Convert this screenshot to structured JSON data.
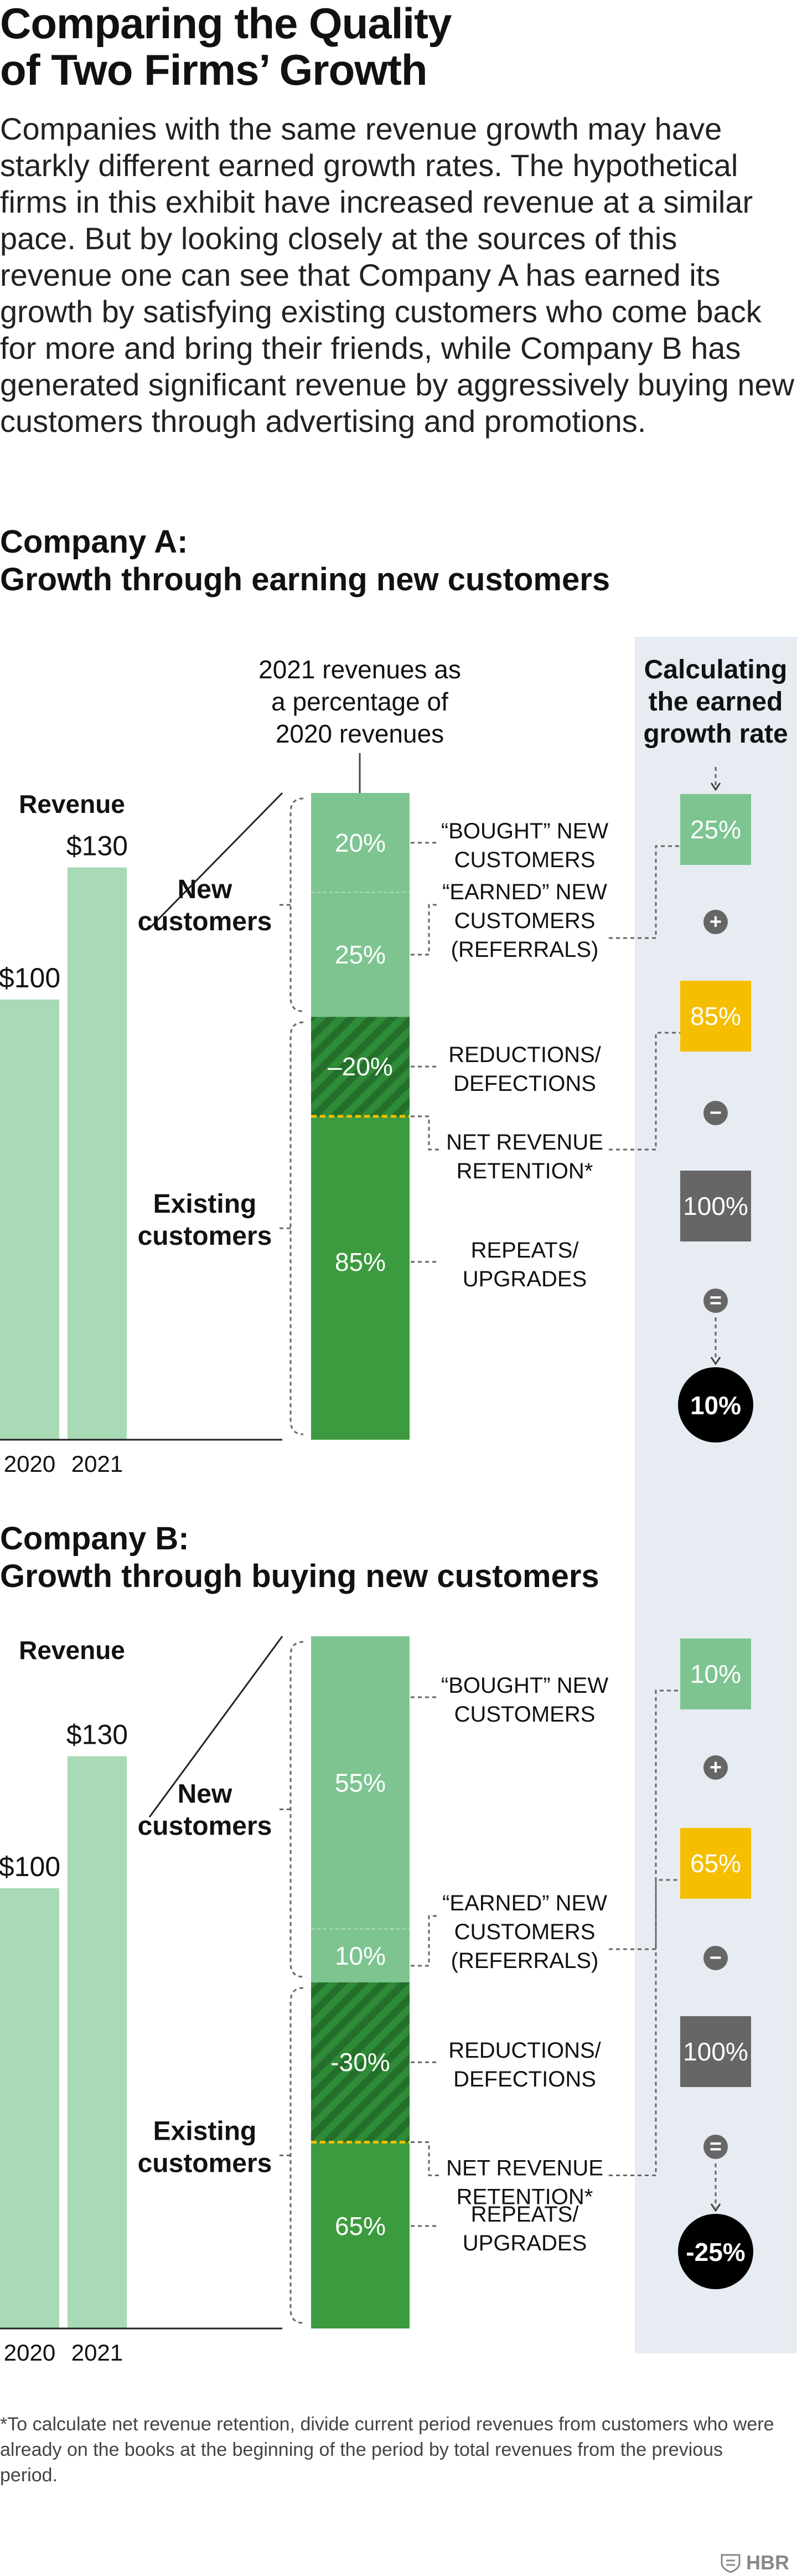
{
  "title": {
    "line1": "Comparing the Quality",
    "line2": "of Two Firms’ Growth"
  },
  "intro": "Companies with the same revenue growth may have starkly different earned growth rates. The hypothetical firms in this exhibit have increased revenue at a similar pace. But by looking closely at the sources of this revenue one can see that Company A has earned its growth by satisfying existing customers who come back for more and bring their friends, while Company B has generated significant revenue by aggressively buying new customers through advertising and promotions.",
  "panel_header": {
    "line1": "Calculating",
    "line2": "the earned",
    "line3": "growth rate"
  },
  "stack_caption": {
    "line1": "2021 revenues as",
    "line2": "a percentage of",
    "line3": "2020 revenues"
  },
  "labels": {
    "revenue": "Revenue",
    "new_customers": {
      "line1": "New",
      "line2": "customers"
    },
    "existing_customers": {
      "line1": "Existing",
      "line2": "customers"
    },
    "bought": {
      "line1": "“BOUGHT” NEW",
      "line2": "CUSTOMERS"
    },
    "earned": {
      "line1": "“EARNED” NEW",
      "line2": "CUSTOMERS",
      "line3": "(REFERRALS)"
    },
    "reductions": {
      "line1": "REDUCTIONS/",
      "line2": "DEFECTIONS"
    },
    "nrr": {
      "line1": "NET REVENUE",
      "line2": "RETENTION*"
    },
    "repeats": {
      "line1": "REPEATS/",
      "line2": "UPGRADES"
    }
  },
  "operators": {
    "plus": "+",
    "minus": "−",
    "equals": "="
  },
  "colors": {
    "revenue_bar": "#a8dab5",
    "bought": "#7dc491",
    "earned": "#7dc491",
    "reductions": "#2e8b37",
    "repeats": "#3c9b3e",
    "nrr_line": "#f6be00",
    "nrr_box": "#f6be00",
    "base_box": "#666666",
    "result_circle": "#000000",
    "panel_bg": "#e7ecf3"
  },
  "footnote": "*To calculate net revenue retention, divide current period revenues from customers who were already on the books at the beginning of the period by total revenues from the previous period.",
  "logo": "HBR",
  "chart_data": [
    {
      "type": "bar",
      "title": "Company A:",
      "subtitle": "Growth through earning new customers",
      "categories": [
        "2020",
        "2021"
      ],
      "values": [
        100,
        130
      ],
      "value_labels": [
        "$100",
        "$130"
      ],
      "ylabel": "Revenue",
      "stack": {
        "bought": 20,
        "earned": 25,
        "reductions": -20,
        "repeats": 85,
        "labels": {
          "bought": "20%",
          "earned": "25%",
          "reductions": "–20%",
          "repeats": "85%"
        }
      },
      "calculation": {
        "bought": "25%",
        "nrr": "85%",
        "base": "100%",
        "result": "10%"
      }
    },
    {
      "type": "bar",
      "title": "Company B:",
      "subtitle": "Growth through buying new customers",
      "categories": [
        "2020",
        "2021"
      ],
      "values": [
        100,
        130
      ],
      "value_labels": [
        "$100",
        "$130"
      ],
      "ylabel": "Revenue",
      "stack": {
        "bought": 55,
        "earned": 10,
        "reductions": -30,
        "repeats": 65,
        "labels": {
          "bought": "55%",
          "earned": "10%",
          "reductions": "-30%",
          "repeats": "65%"
        }
      },
      "calculation": {
        "bought": "10%",
        "nrr": "65%",
        "base": "100%",
        "result": "-25%"
      }
    }
  ]
}
